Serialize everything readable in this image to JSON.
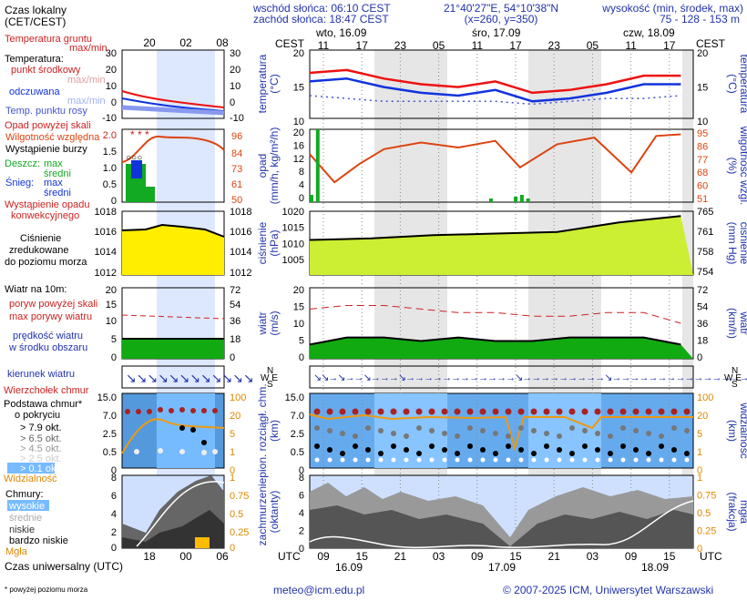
{
  "header": {
    "sunrise": "wschód słońca: 06:10 CEST",
    "sunset": "zachód słońca: 18:47 CEST",
    "coords": "21°40'27\"E, 54°10'38\"N",
    "grid": "(x=260, y=350)",
    "elev_title": "wysokość (min, środek, max)",
    "elev_values": "75 - 128 - 153 m"
  },
  "legend": {
    "local_time": "Czas lokalny",
    "local_time_zone": "(CET/CEST)",
    "local_ticks": [
      "20",
      "02",
      "08"
    ],
    "utc_ticks": [
      "18",
      "00",
      "06"
    ],
    "soil_temp": "Temperatura gruntu",
    "soil_temp_sub": "max/min",
    "temperature": "Temperatura:",
    "temp_mid": "punkt środkowy",
    "temp_maxmin": "max/min",
    "temp_felt": "odczuwana",
    "temp_felt_sub": "max/min",
    "dew_point": "Temp. punktu rosy",
    "precip_above": "Opad powyżej skali",
    "humidity": "Wilgotność względna",
    "storm": "Wystąpienie burzy",
    "rain": "Deszcz:",
    "rain_max": "max",
    "rain_mid": "średni",
    "snow": "Śnieg:",
    "snow_max": "max",
    "snow_mid": "średni",
    "convective_1": "Wystąpienie opadu",
    "convective_2": "konwekcyjnego",
    "pressure_1": "Ciśnienie",
    "pressure_2": "zredukowane",
    "pressure_3": "do poziomu morza",
    "wind_title": "Wiatr na 10m:",
    "gust_above": "poryw powyżej skali",
    "gust_max": "max porywy wiatru",
    "wind_speed_1": "prędkość wiatru",
    "wind_speed_2": "w środku obszaru",
    "wind_dir": "kierunek wiatru",
    "cloud_top": "Wierzchołek chmur",
    "cloud_base_1": "Podstawa chmur*",
    "cloud_base_2": "o pokryciu",
    "okt_79": "> 7.9 okt.",
    "okt_65": "> 6.5 okt.",
    "okt_45": "> 4.5 okt.",
    "okt_25": "> 2.5 okt.",
    "okt_01": "> 0.1 okt.",
    "visibility": "Widzialność",
    "clouds": "Chmury:",
    "cl_high": "wysokie",
    "cl_mid": "średnie",
    "cl_low": "niskie",
    "cl_verylow": "bardzo niskie",
    "fog": "Mgła",
    "utc_time": "Czas uniwersalny (UTC)",
    "footnote": "* powyżej poziomu morza",
    "mini_left_ticks": {
      "temp": [
        "30",
        "20",
        "10",
        "0",
        "-10"
      ],
      "precip": [
        "2.0",
        "1.5",
        "1.0",
        "0.5",
        "0"
      ],
      "pressure": [
        "1018",
        "1016",
        "1014",
        "1012"
      ],
      "wind": [
        "20",
        "15",
        "10",
        "5",
        "0"
      ],
      "cloud": [
        "15.0",
        "7.0",
        "2.5",
        "0.5",
        "0"
      ],
      "cover": [
        "8",
        "6",
        "4",
        "2",
        "0"
      ]
    },
    "mini_right_ticks": {
      "temp": [
        "30",
        "20",
        "10",
        "0",
        "-10"
      ],
      "humid": [
        "96",
        "84",
        "73",
        "61",
        "50"
      ],
      "pressure": [
        "1018",
        "1016",
        "1014",
        "1012"
      ],
      "wind": [
        "72",
        "54",
        "36",
        "18",
        "0"
      ],
      "vis": [
        "100",
        "20",
        "5",
        "1",
        "0"
      ],
      "fog": [
        "1",
        "0.75",
        "0.5",
        "0.25",
        "0"
      ]
    }
  },
  "main": {
    "tz_local": "CEST",
    "tz_utc": "UTC",
    "days": [
      "wto, 16.09",
      "śro, 17.09",
      "czw, 18.09"
    ],
    "local_hours": [
      "11",
      "17",
      "23",
      "05",
      "11",
      "17",
      "23",
      "05",
      "11",
      "17"
    ],
    "utc_hours": [
      "09",
      "15",
      "21",
      "03",
      "09",
      "15",
      "21",
      "03",
      "09",
      "15"
    ],
    "utc_dates": [
      "16.09",
      "17.09",
      "18.09"
    ],
    "ylabels_left": {
      "temp": "temperatura",
      "temp_unit": "(°C)",
      "precip": "opad",
      "precip_unit": "(mm/h, kg/m²/h)",
      "pressure": "ciśnienie",
      "pressure_unit": "(hPa)",
      "wind": "wiatr",
      "wind_unit": "(m/s)",
      "cloud": "pion. rozciągł. chm.",
      "cloud_unit": "(km)",
      "cover_1": "zachmurzenie",
      "cover_2": "(oktanty)"
    },
    "ylabels_right": {
      "temp": "temperatura",
      "temp_unit": "(°C)",
      "humid": "wilgotność wzgl.",
      "humid_unit": "(%)",
      "pressure": "ciśnienie",
      "pressure_unit": "(mm Hg)",
      "wind": "wiatr",
      "wind_unit": "(km/h)",
      "vis": "widzialność",
      "vis_unit": "(km)",
      "fog": "mgła",
      "fog_unit": "(frakcja)"
    },
    "compass": "N W E S",
    "ticks_left": {
      "temp": [
        "20",
        "15",
        "10"
      ],
      "precip": [
        "20",
        "16",
        "12",
        "8",
        "4",
        "0"
      ],
      "pressure": [
        "1020",
        "1015",
        "1010",
        "1005"
      ],
      "wind": [
        "20",
        "15",
        "10",
        "5",
        "0"
      ],
      "cloud": [
        "15.0",
        "7.0",
        "2.5",
        "0.5",
        "0"
      ],
      "cover": [
        "8",
        "6",
        "4",
        "2",
        "0"
      ]
    },
    "ticks_right": {
      "temp": [
        "20",
        "15",
        "10"
      ],
      "humid": [
        "95",
        "86",
        "77",
        "68",
        "60",
        "51"
      ],
      "pressure": [
        "765",
        "761",
        "758",
        "754"
      ],
      "wind": [
        "72",
        "54",
        "36",
        "18",
        "0"
      ],
      "vis": [
        "100",
        "20",
        "5",
        "1",
        "0"
      ],
      "fog": [
        "1",
        "0.75",
        "0.5",
        "0.25",
        "0"
      ]
    }
  },
  "footer": {
    "email": "meteo@icm.edu.pl",
    "copyright": "© 2007-2025 ICM, Uniwersytet Warszawski"
  },
  "colors": {
    "temp": "#ee1111",
    "felt": "#1133dd",
    "dew": "#4455cc",
    "humidity": "#dd4411",
    "rain": "#11aa22",
    "pressure_fill": "#ffee00",
    "wind_fill": "#11aa11",
    "visibility": "#ee9911",
    "label_blue": "#2233aa"
  },
  "chart_data": [
    {
      "type": "line",
      "title": "temperatura",
      "ylabel": "(°C)",
      "ylim": [
        8,
        20
      ],
      "x_hours_from_start": [
        0,
        6,
        12,
        18,
        24,
        30,
        36,
        42,
        48,
        54,
        60
      ],
      "series": [
        {
          "name": "punkt środkowy",
          "values": [
            16,
            16.5,
            15,
            14,
            13.5,
            14.5,
            12.5,
            13,
            14,
            15.5,
            15.5
          ]
        },
        {
          "name": "odczuwana",
          "values": [
            14.5,
            15,
            13.5,
            12.5,
            12,
            13,
            11,
            11.5,
            12.5,
            14,
            14
          ]
        },
        {
          "name": "Temp. punktu rosy",
          "values": [
            12,
            11.5,
            11,
            11,
            11,
            11,
            10.5,
            11,
            11.5,
            11.5,
            12
          ]
        }
      ]
    },
    {
      "type": "line",
      "title": "wilgotność wzgl.",
      "ylabel": "(%)",
      "ylim": [
        51,
        95
      ],
      "x_hours_from_start": [
        0,
        4,
        8,
        12,
        18,
        24,
        30,
        34,
        40,
        46,
        52,
        56,
        60
      ],
      "values": [
        80,
        63,
        74,
        83,
        87,
        84,
        88,
        72,
        86,
        90,
        69,
        91,
        92
      ]
    },
    {
      "type": "bar",
      "title": "opad",
      "ylabel": "(mm/h, kg/m²/h)",
      "ylim": [
        0,
        20
      ],
      "x_hours_from_start": [
        0,
        1,
        29,
        33,
        34,
        35
      ],
      "values": [
        2,
        20,
        1,
        1.5,
        2,
        1
      ]
    },
    {
      "type": "area",
      "title": "ciśnienie",
      "ylabel": "(hPa)",
      "ylim": [
        1000,
        1020
      ],
      "x_hours_from_start": [
        0,
        10,
        20,
        30,
        40,
        50,
        60
      ],
      "values": [
        1011,
        1011.5,
        1012.5,
        1013,
        1013.5,
        1016.5,
        1018.5
      ]
    },
    {
      "type": "area",
      "title": "wiatr",
      "ylabel": "(m/s)",
      "ylim": [
        0,
        20
      ],
      "x_hours_from_start": [
        0,
        6,
        12,
        18,
        24,
        30,
        36,
        42,
        48,
        54,
        60
      ],
      "series": [
        {
          "name": "prędkość wiatru",
          "values": [
            4,
            6,
            6,
            5,
            6,
            5,
            5,
            6,
            6,
            6,
            4
          ]
        },
        {
          "name": "max porywy wiatru",
          "values": [
            14,
            15,
            15,
            14,
            13,
            13,
            12,
            12,
            13,
            13,
            10
          ]
        }
      ]
    }
  ]
}
